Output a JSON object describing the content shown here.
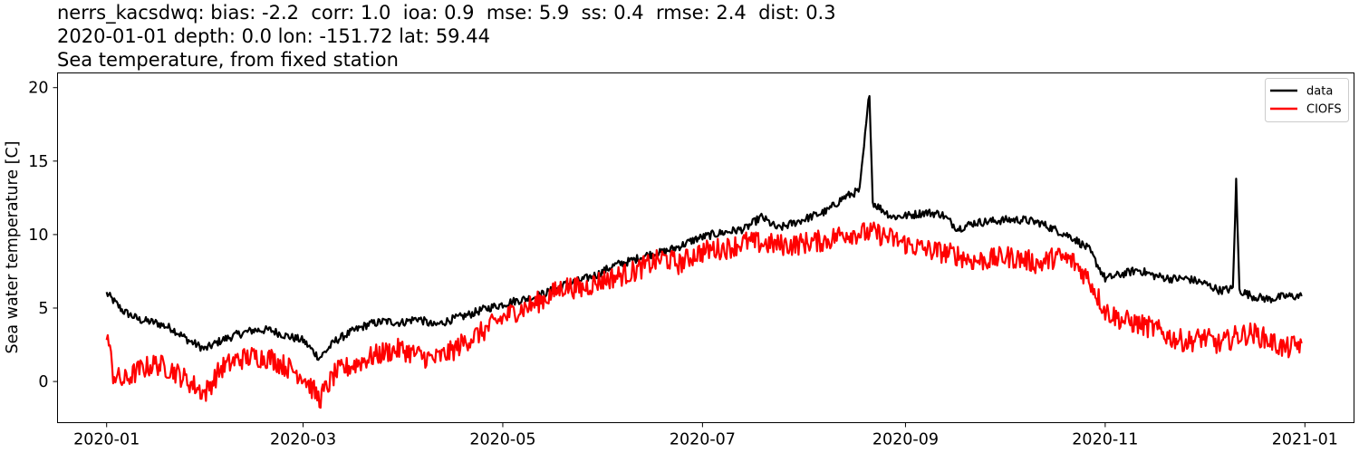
{
  "title_lines": [
    "nerrs_kacsdwq: bias: -2.2  corr: 1.0  ioa: 0.9  mse: 5.9  ss: 0.4  rmse: 2.4  dist: 0.3",
    "2020-01-01 depth: 0.0 lon: -151.72 lat: 59.44",
    "Sea temperature, from fixed station"
  ],
  "chart_data": {
    "type": "line",
    "title": "nerrs_kacsdwq: bias: -2.2  corr: 1.0  ioa: 0.9  mse: 5.9  ss: 0.4  rmse: 2.4  dist: 0.3 / 2020-01-01 depth: 0.0 lon: -151.72 lat: 59.44 / Sea temperature, from fixed station",
    "xlabel": "",
    "ylabel": "Sea water temperature [C]",
    "xlim": [
      "2019-12-17",
      "2021-01-16"
    ],
    "ylim": [
      -2.8,
      21.0
    ],
    "x_ticks": [
      "2020-01",
      "2020-03",
      "2020-05",
      "2020-07",
      "2020-09",
      "2020-11",
      "2021-01"
    ],
    "y_ticks": [
      0,
      5,
      10,
      15,
      20
    ],
    "grid": false,
    "legend_position": "top-right",
    "series": [
      {
        "name": "data",
        "color": "#000000",
        "x": [
          "2020-01-01",
          "2020-01-06",
          "2020-01-11",
          "2020-01-16",
          "2020-01-21",
          "2020-01-26",
          "2020-01-31",
          "2020-02-05",
          "2020-02-10",
          "2020-02-15",
          "2020-02-20",
          "2020-02-25",
          "2020-03-01",
          "2020-03-06",
          "2020-03-11",
          "2020-03-16",
          "2020-03-21",
          "2020-03-26",
          "2020-03-31",
          "2020-04-05",
          "2020-04-10",
          "2020-04-15",
          "2020-04-20",
          "2020-04-25",
          "2020-04-30",
          "2020-05-05",
          "2020-05-10",
          "2020-05-15",
          "2020-05-20",
          "2020-05-25",
          "2020-05-30",
          "2020-06-04",
          "2020-06-09",
          "2020-06-14",
          "2020-06-19",
          "2020-06-24",
          "2020-06-29",
          "2020-07-04",
          "2020-07-09",
          "2020-07-14",
          "2020-07-19",
          "2020-07-24",
          "2020-07-29",
          "2020-08-03",
          "2020-08-08",
          "2020-08-13",
          "2020-08-18",
          "2020-08-21",
          "2020-08-22",
          "2020-08-23",
          "2020-08-28",
          "2020-09-02",
          "2020-09-07",
          "2020-09-12",
          "2020-09-17",
          "2020-09-22",
          "2020-09-27",
          "2020-10-02",
          "2020-10-07",
          "2020-10-12",
          "2020-10-17",
          "2020-10-22",
          "2020-10-27",
          "2020-11-01",
          "2020-11-06",
          "2020-11-11",
          "2020-11-16",
          "2020-11-21",
          "2020-11-26",
          "2020-12-01",
          "2020-12-06",
          "2020-12-10",
          "2020-12-11",
          "2020-12-12",
          "2020-12-16",
          "2020-12-21",
          "2020-12-26",
          "2020-12-31"
        ],
        "values": [
          6.0,
          4.8,
          4.2,
          4.0,
          3.6,
          2.8,
          2.2,
          2.8,
          3.2,
          3.5,
          3.5,
          3.1,
          2.8,
          1.6,
          2.8,
          3.4,
          3.9,
          4.1,
          4.0,
          4.3,
          3.8,
          4.2,
          4.5,
          4.9,
          5.2,
          5.5,
          5.7,
          6.1,
          6.6,
          6.9,
          7.3,
          7.9,
          8.2,
          8.6,
          8.8,
          9.2,
          9.7,
          10.0,
          10.2,
          10.4,
          11.2,
          10.4,
          10.8,
          11.2,
          11.6,
          12.5,
          13.0,
          19.7,
          12.2,
          12.0,
          11.2,
          11.3,
          11.5,
          11.4,
          10.4,
          10.8,
          10.9,
          11.0,
          11.0,
          10.8,
          10.3,
          9.8,
          9.0,
          7.0,
          7.3,
          7.6,
          7.2,
          7.0,
          7.0,
          6.7,
          6.2,
          6.3,
          13.6,
          6.2,
          5.8,
          5.6,
          5.8,
          5.8
        ]
      },
      {
        "name": "CIOFS",
        "color": "#ff0000",
        "x": [
          "2020-01-01",
          "2020-01-03",
          "2020-01-06",
          "2020-01-11",
          "2020-01-16",
          "2020-01-21",
          "2020-01-26",
          "2020-01-31",
          "2020-02-05",
          "2020-02-10",
          "2020-02-15",
          "2020-02-20",
          "2020-02-25",
          "2020-03-01",
          "2020-03-06",
          "2020-03-11",
          "2020-03-16",
          "2020-03-21",
          "2020-03-26",
          "2020-03-31",
          "2020-04-05",
          "2020-04-10",
          "2020-04-15",
          "2020-04-20",
          "2020-04-25",
          "2020-04-30",
          "2020-05-05",
          "2020-05-10",
          "2020-05-15",
          "2020-05-20",
          "2020-05-25",
          "2020-05-30",
          "2020-06-04",
          "2020-06-09",
          "2020-06-14",
          "2020-06-19",
          "2020-06-24",
          "2020-06-29",
          "2020-07-04",
          "2020-07-09",
          "2020-07-14",
          "2020-07-19",
          "2020-07-24",
          "2020-07-29",
          "2020-08-03",
          "2020-08-08",
          "2020-08-13",
          "2020-08-18",
          "2020-08-23",
          "2020-08-28",
          "2020-09-02",
          "2020-09-07",
          "2020-09-12",
          "2020-09-17",
          "2020-09-22",
          "2020-09-27",
          "2020-10-02",
          "2020-10-07",
          "2020-10-12",
          "2020-10-17",
          "2020-10-22",
          "2020-10-27",
          "2020-11-01",
          "2020-11-06",
          "2020-11-11",
          "2020-11-16",
          "2020-11-21",
          "2020-11-26",
          "2020-12-01",
          "2020-12-06",
          "2020-12-11",
          "2020-12-16",
          "2020-12-21",
          "2020-12-26",
          "2020-12-31"
        ],
        "values": [
          3.5,
          0.5,
          0.0,
          0.8,
          1.2,
          0.8,
          0.0,
          -0.8,
          0.9,
          1.5,
          1.7,
          1.6,
          1.0,
          0.4,
          -1.2,
          0.6,
          1.1,
          1.6,
          2.0,
          2.2,
          1.8,
          1.5,
          2.0,
          2.8,
          3.4,
          4.2,
          4.8,
          5.2,
          5.8,
          6.5,
          6.3,
          6.8,
          7.1,
          7.4,
          7.9,
          8.4,
          8.0,
          8.7,
          9.0,
          9.1,
          9.5,
          9.4,
          9.3,
          9.3,
          9.5,
          9.6,
          10.1,
          10.1,
          10.1,
          9.7,
          9.3,
          9.0,
          8.8,
          8.6,
          8.2,
          8.3,
          8.5,
          8.3,
          8.0,
          8.5,
          8.2,
          7.0,
          4.8,
          4.2,
          3.9,
          3.6,
          3.0,
          2.7,
          3.0,
          2.5,
          3.1,
          3.3,
          2.8,
          2.2,
          2.6
        ]
      }
    ]
  }
}
